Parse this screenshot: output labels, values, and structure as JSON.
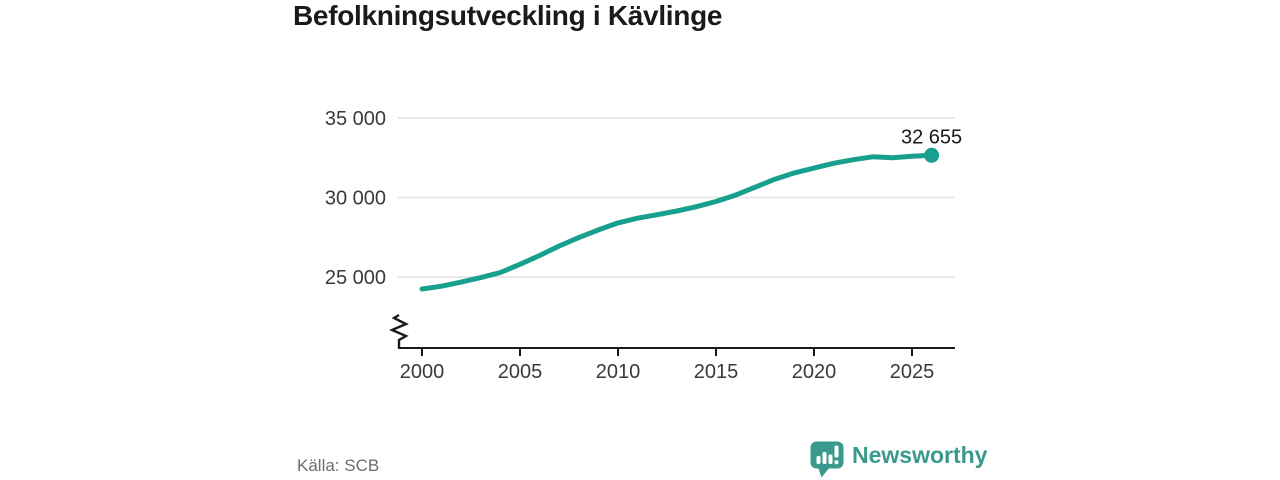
{
  "header": {
    "title": "Befolkningsutveckling i Kävlinge"
  },
  "footer": {
    "source_label": "Källa: SCB",
    "brand_name": "Newsworthy"
  },
  "colors": {
    "line": "#17a08e",
    "brand": "#39998c",
    "grid": "#e2e2e2",
    "axis": "#1a1a1a",
    "tick_text": "#3a3a3a",
    "end_label_text": "#1a1a1a"
  },
  "chart_data": {
    "type": "line",
    "title": "Befolkningsutveckling i Kävlinge",
    "xlabel": "",
    "ylabel": "",
    "series_name": "Befolkning",
    "x": [
      2000,
      2001,
      2002,
      2003,
      2004,
      2005,
      2006,
      2007,
      2008,
      2009,
      2010,
      2011,
      2012,
      2013,
      2014,
      2015,
      2016,
      2017,
      2018,
      2019,
      2020,
      2021,
      2022,
      2023,
      2024,
      2025,
      2026
    ],
    "values": [
      24246,
      24420,
      24680,
      24960,
      25280,
      25800,
      26350,
      26950,
      27480,
      27960,
      28400,
      28700,
      28920,
      29150,
      29420,
      29750,
      30150,
      30650,
      31150,
      31550,
      31850,
      32150,
      32380,
      32560,
      32500,
      32590,
      32655
    ],
    "end_value": 32655,
    "end_label": "32 655",
    "x_ticks": {
      "values": [
        2000,
        2005,
        2010,
        2015,
        2020,
        2025
      ],
      "labels": [
        "2000",
        "2005",
        "2010",
        "2015",
        "2020",
        "2025"
      ]
    },
    "y_ticks": {
      "values": [
        25000,
        30000,
        35000
      ],
      "labels": [
        "25 000",
        "30 000",
        "35 000"
      ]
    },
    "ylim": [
      25000,
      35000
    ],
    "axis_break": true,
    "grid": true,
    "legend": false,
    "source": "Källa: SCB"
  }
}
